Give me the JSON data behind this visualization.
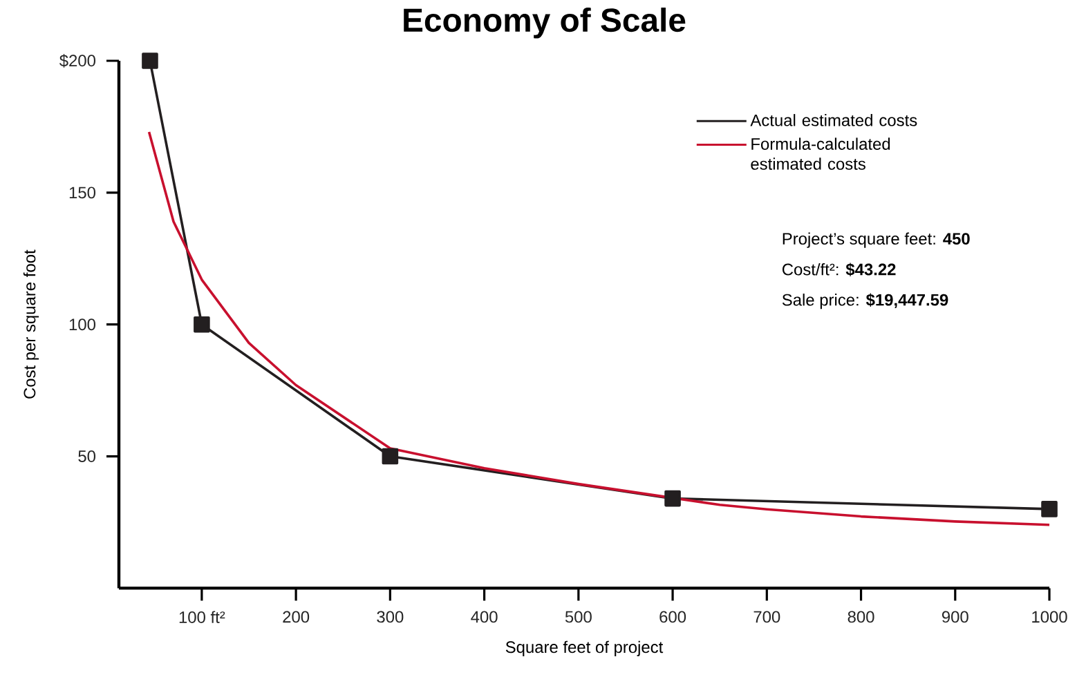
{
  "chart_data": {
    "type": "line",
    "title": "Economy of Scale",
    "xlabel": "Square feet of project",
    "ylabel": "Cost per square foot",
    "xlim": [
      12,
      1000
    ],
    "ylim": [
      0,
      200
    ],
    "xticks": [
      {
        "value": 100,
        "label": "100 ft²"
      },
      200,
      300,
      400,
      500,
      600,
      700,
      800,
      900,
      1000
    ],
    "yticks": [
      50,
      100,
      150,
      {
        "value": 200,
        "label": "$200"
      }
    ],
    "legend": "top right",
    "series": [
      {
        "name": "Actual estimated costs",
        "color": "#231f20",
        "marker": "square",
        "x": [
          45,
          100,
          300,
          600,
          1000
        ],
        "values": [
          200,
          100,
          50,
          34,
          30
        ]
      },
      {
        "name": "Formula-calculated estimated costs",
        "color": "#c8102e",
        "marker": "none",
        "x": [
          44,
          70,
          100,
          150,
          200,
          300,
          400,
          500,
          650,
          700,
          800,
          900,
          1000
        ],
        "values": [
          173,
          139,
          117,
          93,
          77,
          53,
          45.5,
          39.5,
          31.6,
          29.9,
          27.2,
          25.3,
          24
        ]
      }
    ],
    "annotations": [
      "Project’s square feet: **450**",
      "Cost/ft²: **$43.22**",
      "Sale price: **$19,447.59**"
    ]
  }
}
